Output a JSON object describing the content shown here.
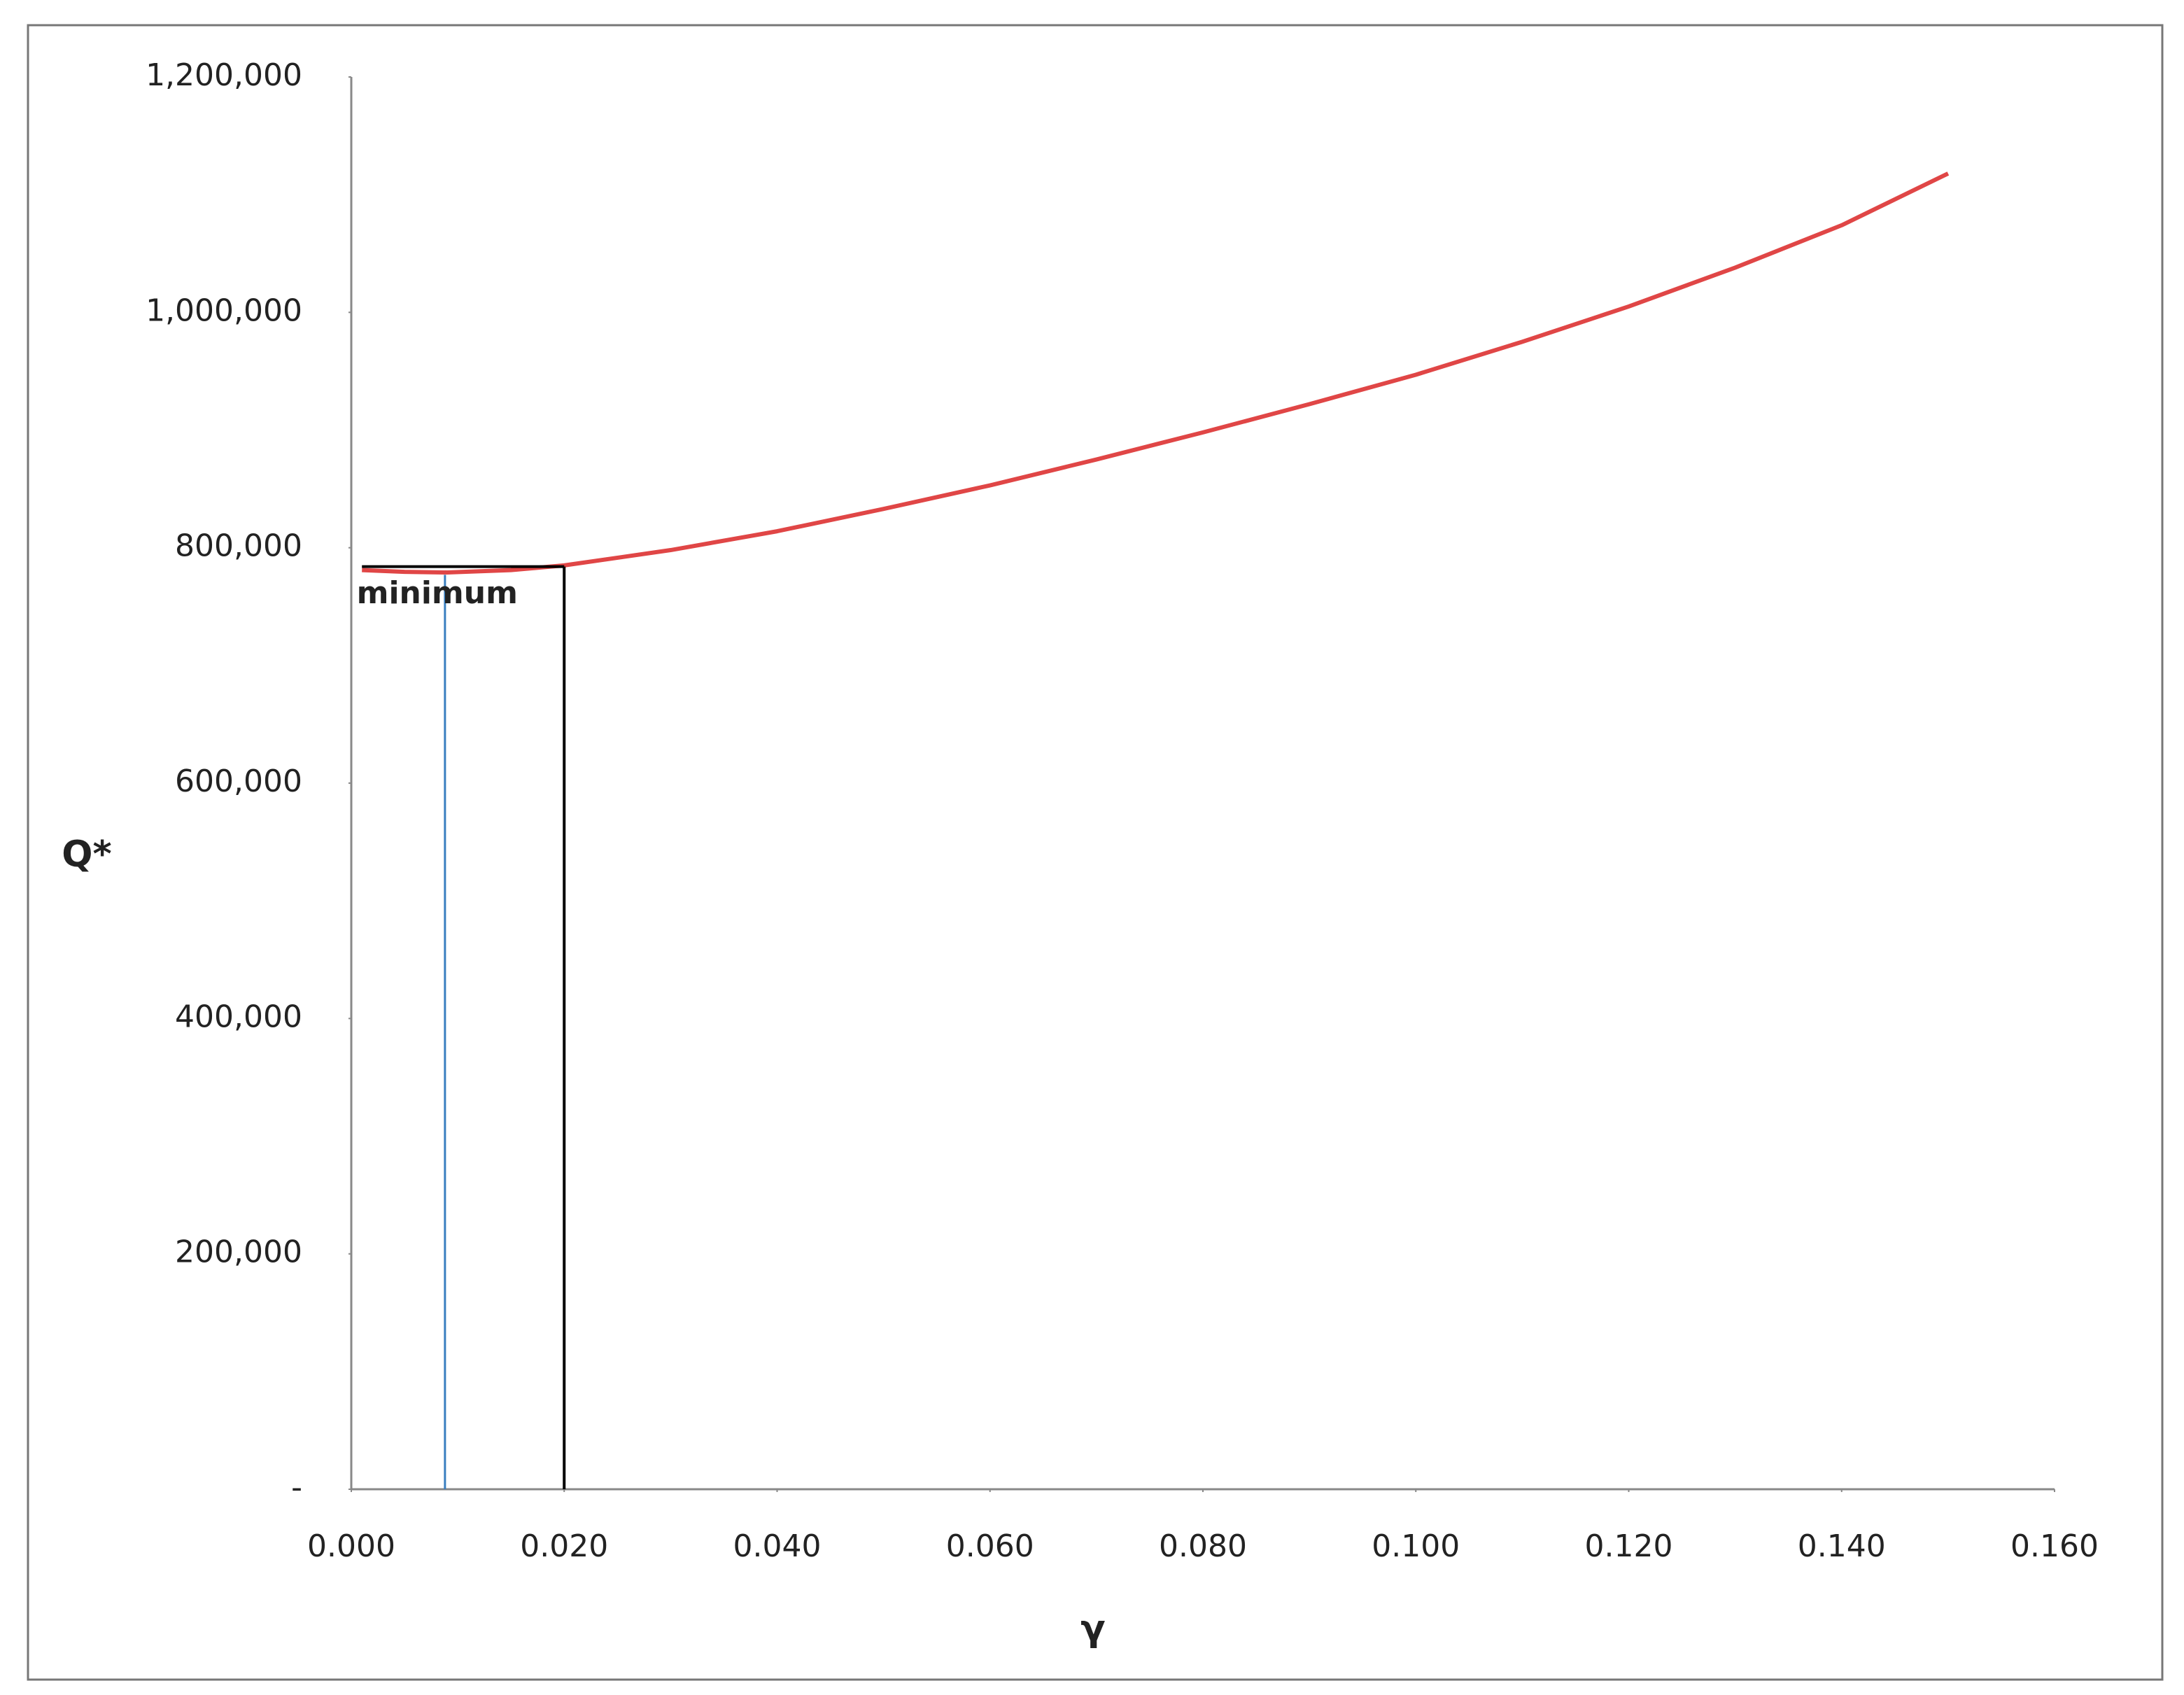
{
  "chart_data": {
    "type": "line",
    "x_label": "γ",
    "y_label": "Q*",
    "xlim": [
      0,
      0.16
    ],
    "ylim": [
      0,
      1200000
    ],
    "xticks": [
      {
        "value": 0,
        "label": "0.000"
      },
      {
        "value": 0.02,
        "label": "0.020"
      },
      {
        "value": 0.04,
        "label": "0.040"
      },
      {
        "value": 0.06,
        "label": "0.060"
      },
      {
        "value": 0.08,
        "label": "0.080"
      },
      {
        "value": 0.1,
        "label": "0.100"
      },
      {
        "value": 0.12,
        "label": "0.120"
      },
      {
        "value": 0.14,
        "label": "0.140"
      },
      {
        "value": 0.16,
        "label": "0.160"
      }
    ],
    "yticks": [
      {
        "value": 0,
        "label": "-"
      },
      {
        "value": 200000,
        "label": "200,000"
      },
      {
        "value": 400000,
        "label": "400,000"
      },
      {
        "value": 600000,
        "label": "600,000"
      },
      {
        "value": 800000,
        "label": "800,000"
      },
      {
        "value": 1000000,
        "label": "1,000,000"
      },
      {
        "value": 1200000,
        "label": "1,200,000"
      }
    ],
    "grid": false,
    "series": [
      {
        "color": "#e04646",
        "x": [
          0.001,
          0.005,
          0.009,
          0.015,
          0.02,
          0.03,
          0.04,
          0.05,
          0.06,
          0.07,
          0.08,
          0.09,
          0.1,
          0.11,
          0.12,
          0.13,
          0.14,
          0.15
        ],
        "values": [
          781000,
          779500,
          779000,
          781000,
          785000,
          798000,
          814000,
          833000,
          853000,
          875000,
          898000,
          922000,
          947000,
          975000,
          1005000,
          1038000,
          1074000,
          1118000
        ]
      },
      {
        "color": "#000000",
        "x": [
          0.001,
          0.02
        ],
        "values": [
          784000,
          784000
        ]
      },
      {
        "color": "#000000",
        "x": [
          0.02,
          0.02
        ],
        "values": [
          0,
          784000
        ]
      },
      {
        "color": "#3a7fc0",
        "x": [
          0.0088,
          0.0088
        ],
        "values": [
          0,
          777000
        ]
      }
    ],
    "annotations": [
      {
        "text": "minimum",
        "x": 0.0005,
        "y": 760000
      }
    ]
  }
}
